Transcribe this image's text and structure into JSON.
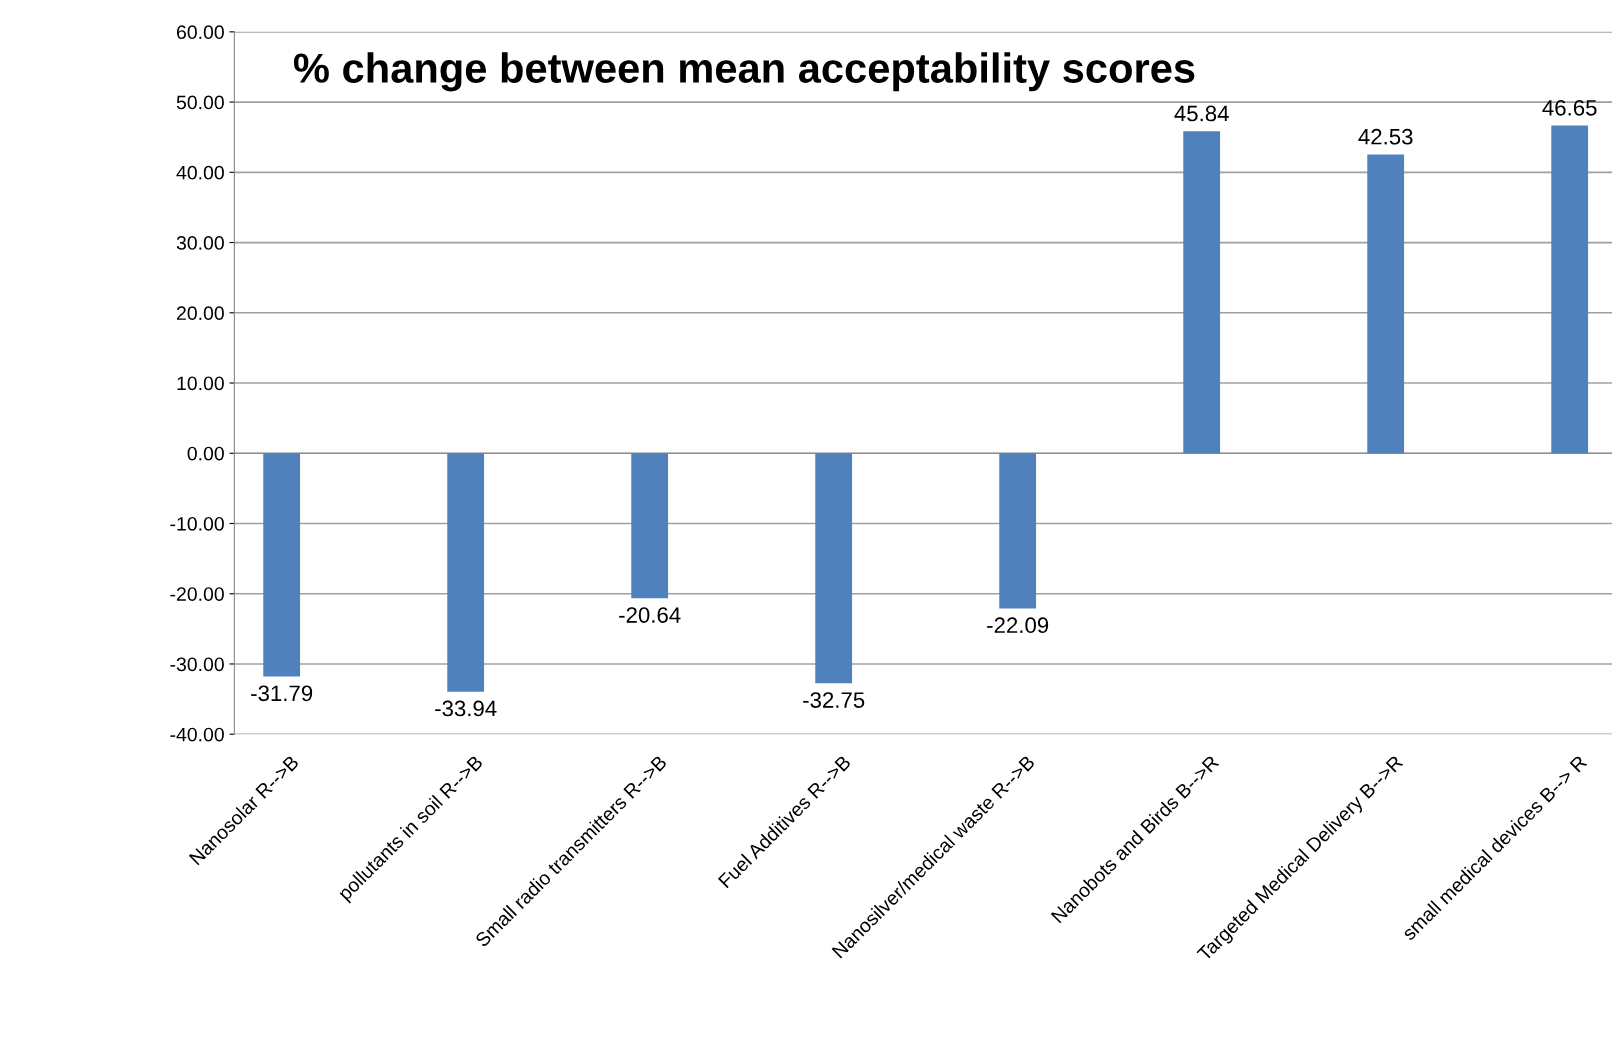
{
  "chart_data": {
    "type": "bar",
    "title": "% change between mean acceptability scores",
    "categories": [
      "Nanosolar R-->B",
      "pollutants in soil R-->B",
      "Small radio transmitters R-->B",
      "Fuel Additives R-->B",
      "Nanosilver/medical waste R-->B",
      "Nanobots and Birds B-->R",
      "Targeted Medical Delivery B-->R",
      "small medical devices B--> R"
    ],
    "values": [
      -31.79,
      -33.94,
      -20.64,
      -32.75,
      -22.09,
      45.84,
      42.53,
      46.65
    ],
    "color": "#4f81bd",
    "ylim": [
      -40,
      60
    ],
    "yticks": [
      {
        "value": -40,
        "label": "-40.00"
      },
      {
        "value": -30,
        "label": "-30.00"
      },
      {
        "value": -20,
        "label": "-20.00"
      },
      {
        "value": -10,
        "label": "-10.00"
      },
      {
        "value": 0,
        "label": "0.00"
      },
      {
        "value": 10,
        "label": "10.00"
      },
      {
        "value": 20,
        "label": "20.00"
      },
      {
        "value": 30,
        "label": "30.00"
      },
      {
        "value": 40,
        "label": "40.00"
      },
      {
        "value": 50,
        "label": "50.00"
      },
      {
        "value": 60,
        "label": "60.00"
      }
    ],
    "grid": "y",
    "data_labels": true
  }
}
